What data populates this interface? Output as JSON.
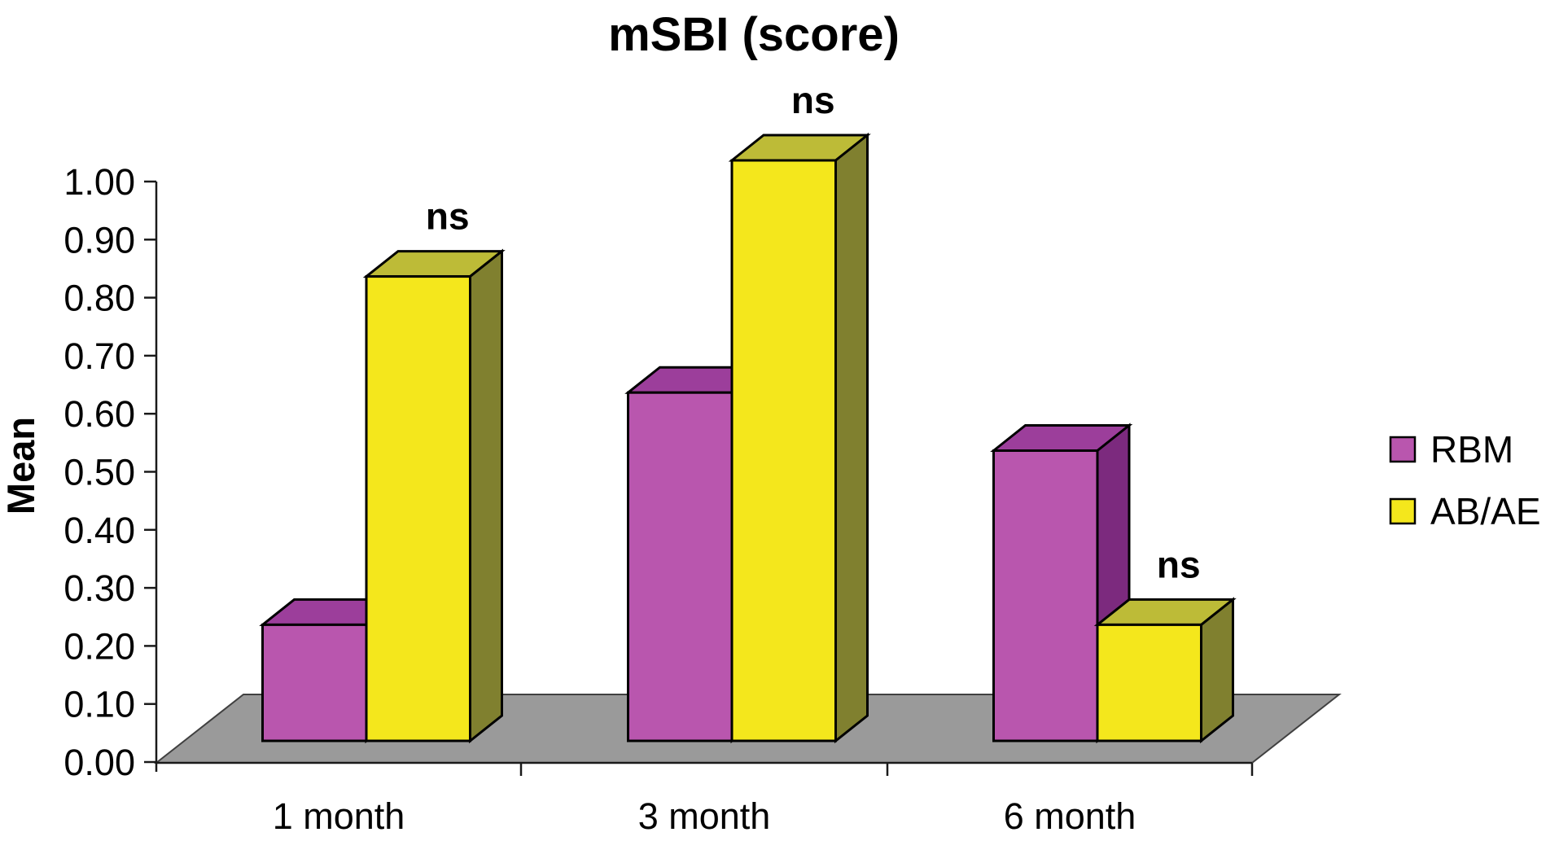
{
  "title": "mSBI (score)",
  "chart_data": {
    "type": "bar",
    "projection": "3d",
    "title": "mSBI (score)",
    "ylabel": "Mean",
    "xlabel": "",
    "categories": [
      "1 month",
      "3 month",
      "6 month"
    ],
    "series": [
      {
        "name": "RBM",
        "values": [
          0.2,
          0.6,
          0.5
        ],
        "color_front": "#B956AE",
        "color_top": "#9C3E9B",
        "color_side": "#7C2A7E"
      },
      {
        "name": "AB/AE",
        "values": [
          0.8,
          1.0,
          0.2
        ],
        "color_front": "#F4E71C",
        "color_top": "#BDBB37",
        "color_side": "#80802F"
      }
    ],
    "annotations": [
      {
        "text": "ns",
        "category_index": 0,
        "series_index": 1
      },
      {
        "text": "ns",
        "category_index": 1,
        "series_index": 1
      },
      {
        "text": "ns",
        "category_index": 2,
        "series_index": 1
      }
    ],
    "ylim": [
      0.0,
      1.0
    ],
    "ytick_step": 0.1,
    "ytick_labels": [
      "0.00",
      "0.10",
      "0.20",
      "0.30",
      "0.40",
      "0.50",
      "0.60",
      "0.70",
      "0.80",
      "0.90",
      "1.00"
    ],
    "legend": {
      "position": "right",
      "entries": [
        "RBM",
        "AB/AE"
      ]
    },
    "grid": false,
    "floor_color": "#9A9A9A",
    "edge_color": "#000000",
    "axis_color": "#1A1A1A",
    "background_color": "#FFFFFF",
    "text_color": "#000000"
  }
}
